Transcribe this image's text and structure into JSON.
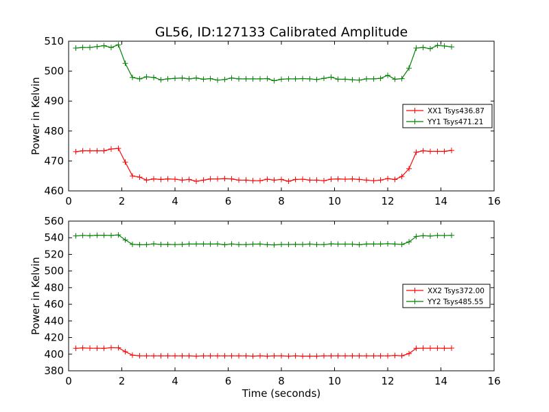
{
  "figure": {
    "title": "GL56, ID:127133 Calibrated Amplitude"
  },
  "chart_data": [
    {
      "type": "line",
      "title": "GL56, ID:127133 Calibrated Amplitude",
      "xlabel": "",
      "ylabel": "Power in Kelvin",
      "xlim": [
        0,
        16
      ],
      "ylim": [
        460,
        510
      ],
      "xticks": [
        0,
        2,
        4,
        6,
        8,
        10,
        12,
        14,
        16
      ],
      "yticks": [
        460,
        470,
        480,
        490,
        500,
        510
      ],
      "grid": false,
      "legend_position": "center-right",
      "x": [
        0.27,
        0.53,
        0.8,
        1.07,
        1.33,
        1.6,
        1.87,
        2.13,
        2.4,
        2.67,
        2.93,
        3.2,
        3.47,
        3.73,
        4.0,
        4.27,
        4.53,
        4.8,
        5.07,
        5.33,
        5.6,
        5.87,
        6.13,
        6.4,
        6.67,
        6.93,
        7.2,
        7.47,
        7.73,
        8.0,
        8.27,
        8.53,
        8.8,
        9.07,
        9.33,
        9.6,
        9.87,
        10.13,
        10.4,
        10.67,
        10.93,
        11.2,
        11.47,
        11.73,
        12.0,
        12.27,
        12.53,
        12.8,
        13.07,
        13.33,
        13.6,
        13.87,
        14.13,
        14.4
      ],
      "series": [
        {
          "name": "XX1 Tsys436.87",
          "color": "#ff0000",
          "values": [
            473.1,
            473.4,
            473.4,
            473.4,
            473.4,
            474.0,
            474.2,
            469.6,
            465.0,
            464.6,
            463.6,
            464.0,
            463.8,
            464.0,
            463.9,
            463.6,
            463.8,
            463.2,
            463.6,
            464.0,
            464.0,
            464.1,
            464.0,
            463.6,
            463.6,
            463.4,
            463.4,
            463.9,
            463.6,
            463.8,
            463.2,
            463.8,
            463.9,
            463.6,
            463.6,
            463.4,
            463.9,
            464.0,
            463.9,
            464.0,
            463.8,
            463.6,
            463.4,
            463.6,
            464.1,
            463.8,
            464.8,
            467.4,
            472.9,
            473.4,
            473.2,
            473.2,
            473.2,
            473.5
          ]
        },
        {
          "name": "YY1 Tsys471.21",
          "color": "#008000",
          "values": [
            507.7,
            507.9,
            507.9,
            508.2,
            508.5,
            507.9,
            508.8,
            502.6,
            497.9,
            497.4,
            498.1,
            497.9,
            497.1,
            497.4,
            497.6,
            497.7,
            497.4,
            497.7,
            497.3,
            497.5,
            497.0,
            497.2,
            497.7,
            497.4,
            497.4,
            497.4,
            497.4,
            497.5,
            496.8,
            497.3,
            497.4,
            497.4,
            497.5,
            497.4,
            497.2,
            497.6,
            498.0,
            497.3,
            497.3,
            497.1,
            497.0,
            497.4,
            497.4,
            497.6,
            498.6,
            497.3,
            497.5,
            501.0,
            507.7,
            507.9,
            507.5,
            508.6,
            508.4,
            508.1
          ]
        }
      ]
    },
    {
      "type": "line",
      "title": "",
      "xlabel": "Time (seconds)",
      "ylabel": "Power in Kelvin",
      "xlim": [
        0,
        16
      ],
      "ylim": [
        380,
        560
      ],
      "xticks": [
        0,
        2,
        4,
        6,
        8,
        10,
        12,
        14,
        16
      ],
      "yticks": [
        380,
        400,
        420,
        440,
        460,
        480,
        500,
        520,
        540,
        560
      ],
      "grid": false,
      "legend_position": "center-right",
      "x": [
        0.27,
        0.53,
        0.8,
        1.07,
        1.33,
        1.6,
        1.87,
        2.13,
        2.4,
        2.67,
        2.93,
        3.2,
        3.47,
        3.73,
        4.0,
        4.27,
        4.53,
        4.8,
        5.07,
        5.33,
        5.6,
        5.87,
        6.13,
        6.4,
        6.67,
        6.93,
        7.2,
        7.47,
        7.73,
        8.0,
        8.27,
        8.53,
        8.8,
        9.07,
        9.33,
        9.6,
        9.87,
        10.13,
        10.4,
        10.67,
        10.93,
        11.2,
        11.47,
        11.73,
        12.0,
        12.27,
        12.53,
        12.8,
        13.07,
        13.33,
        13.6,
        13.87,
        14.13,
        14.4
      ],
      "series": [
        {
          "name": "XX2 Tsys372.00",
          "color": "#ff0000",
          "values": [
            407.0,
            407.5,
            407.2,
            407.1,
            407.0,
            407.8,
            407.7,
            403.0,
            398.8,
            398.1,
            398.0,
            398.0,
            398.0,
            398.0,
            398.0,
            398.0,
            398.0,
            397.7,
            398.0,
            398.0,
            398.0,
            398.0,
            398.0,
            398.0,
            398.0,
            397.7,
            398.0,
            397.7,
            398.0,
            398.0,
            397.7,
            398.0,
            397.7,
            397.7,
            397.7,
            398.0,
            398.0,
            398.0,
            398.0,
            398.0,
            398.0,
            398.0,
            398.0,
            398.0,
            398.0,
            398.4,
            398.1,
            400.7,
            407.0,
            407.2,
            407.2,
            407.2,
            407.1,
            407.2
          ]
        },
        {
          "name": "YY2 Tsys485.55",
          "color": "#008000",
          "values": [
            542.2,
            542.8,
            542.5,
            543.0,
            543.0,
            542.8,
            543.4,
            537.4,
            532.0,
            531.6,
            531.7,
            532.6,
            531.9,
            532.0,
            531.8,
            532.0,
            532.4,
            532.4,
            532.4,
            532.4,
            532.5,
            531.6,
            532.5,
            531.8,
            531.8,
            532.3,
            532.4,
            531.7,
            531.4,
            531.9,
            531.9,
            532.0,
            531.9,
            532.4,
            531.8,
            531.8,
            532.6,
            532.3,
            532.3,
            532.3,
            531.6,
            532.4,
            532.4,
            532.4,
            532.8,
            532.4,
            531.9,
            535.0,
            541.5,
            542.5,
            542.0,
            542.8,
            542.7,
            542.9
          ]
        }
      ]
    }
  ]
}
